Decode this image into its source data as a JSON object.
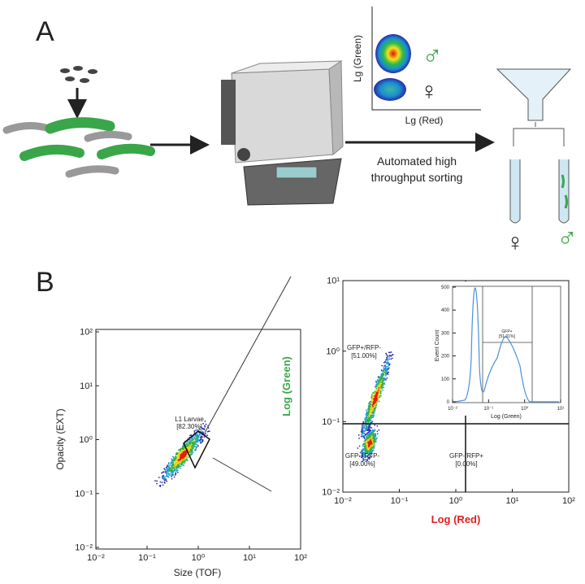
{
  "panel_a": {
    "label": "A",
    "plot_y_label": "Lg (Green)",
    "plot_x_label": "Lg (Red)",
    "plot_male": "♂",
    "plot_female": "♀",
    "caption_line1": "Automated high",
    "caption_line2": "throughput sorting",
    "tube_female": "♀",
    "tube_male": "♂"
  },
  "panel_b": {
    "label": "B",
    "left_plot": {
      "y_label": "Opacity (EXT)",
      "x_label": "Size (TOF)",
      "yticks": [
        "10²",
        "10¹",
        "10⁰",
        "10⁻¹",
        "10⁻²"
      ],
      "xticks": [
        "10⁻²",
        "10⁻¹",
        "10⁰",
        "10¹",
        "10²"
      ],
      "gate_name": "L1 Larvae",
      "gate_percent": "[82.30%]"
    },
    "right_plot": {
      "y_label": "Log (Green)",
      "x_label": "Log (Red)",
      "yticks": [
        "10¹",
        "10⁰",
        "10⁻¹",
        "10⁻²"
      ],
      "xticks": [
        "10⁻²",
        "10⁻¹",
        "10⁰",
        "10¹",
        "10²"
      ],
      "q_upper_name": "GFP+/RFP-",
      "q_upper_percent": "[51.00%]",
      "q_lower_name": "GFP-/ RFP-",
      "q_lower_percent": "[49.00%]",
      "q_right_name": "GFP-/RFP+",
      "q_right_percent": "[0.00%]"
    },
    "inset": {
      "y_label": "Event Count",
      "x_label": "Log (Green)",
      "yticks": [
        "500",
        "400",
        "300",
        "200",
        "100",
        "0"
      ],
      "xticks": [
        "10⁻²",
        "10⁻¹",
        "10⁰",
        "10¹"
      ],
      "gate_name": "GFP+",
      "gate_percent": "[51.01%]"
    }
  }
}
